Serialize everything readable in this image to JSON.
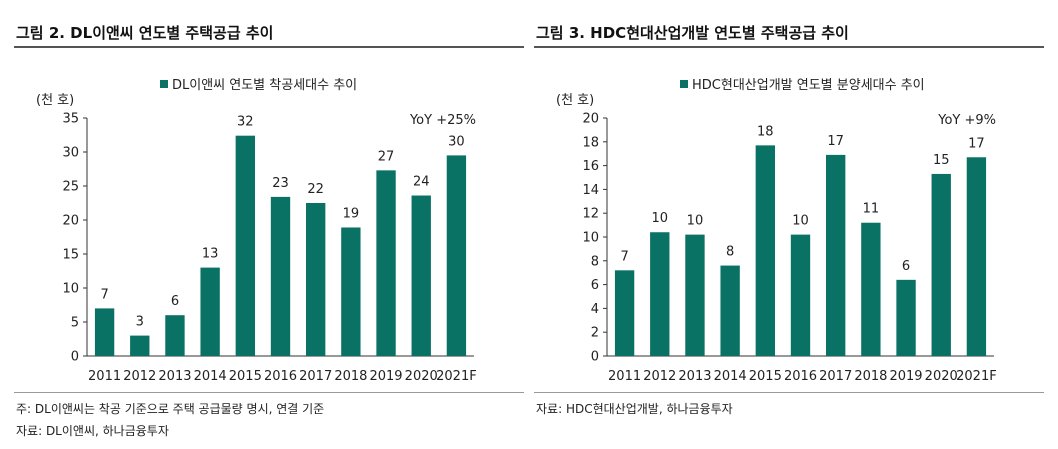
{
  "panels": [
    {
      "title": "그림 2. DL이앤씨 연도별 주택공급 추이",
      "notes": [
        "주: DL이앤씨는 착공 기준으로 주택 공급물량 명시, 연결 기준",
        "자료: DL이앤씨, 하나금융투자"
      ],
      "chart_data": {
        "type": "bar",
        "title": "",
        "xlabel": "",
        "unit_label": "(천 호)",
        "categories": [
          "2011",
          "2012",
          "2013",
          "2014",
          "2015",
          "2016",
          "2017",
          "2018",
          "2019",
          "2020",
          "2021F"
        ],
        "series": [
          {
            "name": "DL이앤씨 연도별 착공세대수 추이",
            "values": [
              7,
              3,
              6,
              13,
              32.4,
              23.4,
              22.5,
              18.9,
              27.3,
              23.6,
              29.5
            ],
            "labels": [
              "7",
              "3",
              "6",
              "13",
              "32",
              "23",
              "22",
              "19",
              "27",
              "24",
              "30"
            ]
          }
        ],
        "annotation": "YoY +25%",
        "ylim": [
          0,
          35
        ],
        "yticks": [
          0,
          5,
          10,
          15,
          20,
          25,
          30,
          35
        ],
        "legend_position": "top",
        "grid": false,
        "bar_color": "#0a7165"
      }
    },
    {
      "title": "그림 3. HDC현대산업개발 연도별 주택공급 추이",
      "notes": [
        "자료: HDC현대산업개발, 하나금융투자"
      ],
      "chart_data": {
        "type": "bar",
        "title": "",
        "xlabel": "",
        "unit_label": "(천 호)",
        "categories": [
          "2011",
          "2012",
          "2013",
          "2014",
          "2015",
          "2016",
          "2017",
          "2018",
          "2019",
          "2020",
          "2021F"
        ],
        "series": [
          {
            "name": "HDC현대산업개발 연도별 분양세대수 추이",
            "values": [
              7.2,
              10.4,
              10.2,
              7.6,
              17.7,
              10.2,
              16.9,
              11.2,
              6.4,
              15.3,
              16.7
            ],
            "labels": [
              "7",
              "10",
              "10",
              "8",
              "18",
              "10",
              "17",
              "11",
              "6",
              "15",
              "17"
            ]
          }
        ],
        "annotation": "YoY +9%",
        "ylim": [
          0,
          20
        ],
        "yticks": [
          0,
          2,
          4,
          6,
          8,
          10,
          12,
          14,
          16,
          18,
          20
        ],
        "legend_position": "top",
        "grid": false,
        "bar_color": "#0a7165"
      }
    }
  ]
}
